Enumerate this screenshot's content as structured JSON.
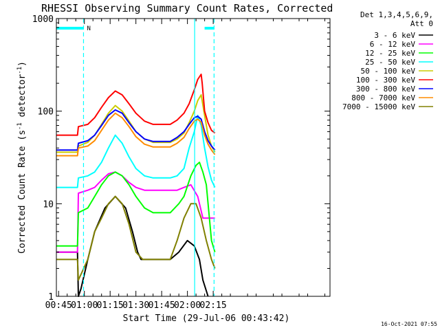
{
  "chart_data": {
    "type": "line",
    "title": "RHESSI Observing Summary Count Rates, Corrected",
    "xlabel": "Start Time (29-Jul-06 00:43:42)",
    "ylabel_main": "Corrected Count Rate (s",
    "ylabel_sup1": "-1",
    "ylabel_mid": " detector",
    "ylabel_sup2": "-1",
    "ylabel_end": ")",
    "x_unit": "minutes since 00:00 UT",
    "xlim": [
      43.7,
      203
    ],
    "ylim": [
      1,
      1000
    ],
    "y_scale": "log",
    "x_ticks": [
      {
        "v": 45,
        "label": "00:45"
      },
      {
        "v": 60,
        "label": "01:00"
      },
      {
        "v": 75,
        "label": "01:15"
      },
      {
        "v": 90,
        "label": "01:30"
      },
      {
        "v": 105,
        "label": "01:45"
      },
      {
        "v": 120,
        "label": "02:00"
      },
      {
        "v": 135,
        "label": "02:15"
      }
    ],
    "y_ticks": [
      {
        "v": 1,
        "label": "1"
      },
      {
        "v": 10,
        "label": "10"
      },
      {
        "v": 100,
        "label": "100"
      },
      {
        "v": 1000,
        "label": "1000"
      }
    ],
    "legend_header": [
      "Det 1,3,4,5,6,9,",
      "Att 0"
    ],
    "legend_position": "right",
    "series": [
      {
        "name": "3 - 6 keV",
        "color": "#000000",
        "x": [
          43.7,
          56,
          56.5,
          58,
          62,
          66,
          72,
          78,
          84,
          88,
          91,
          93,
          95,
          105,
          110,
          115,
          120,
          124,
          127,
          129,
          132
        ],
        "y": [
          3,
          3,
          1,
          1.2,
          2.5,
          5,
          9,
          12,
          9,
          5,
          3,
          2.5,
          2.5,
          2.5,
          2.5,
          3,
          4,
          3.5,
          2.5,
          1.5,
          1
        ]
      },
      {
        "name": "6 - 12 keV",
        "color": "#ff00ff",
        "x": [
          43.7,
          56,
          56.5,
          62,
          66,
          70,
          74,
          78,
          82,
          86,
          90,
          95,
          100,
          110,
          114,
          118,
          122,
          126,
          129,
          131,
          134,
          136
        ],
        "y": [
          3,
          3,
          13,
          14,
          15,
          18,
          21,
          22,
          20,
          17,
          15,
          14,
          14,
          14,
          14,
          15,
          16,
          12,
          7,
          7,
          7,
          7
        ]
      },
      {
        "name": "12 - 25 keV",
        "color": "#00ff00",
        "x": [
          43.7,
          56,
          56.5,
          62,
          66,
          70,
          74,
          78,
          82,
          86,
          90,
          95,
          100,
          110,
          115,
          118,
          122,
          125,
          127,
          129,
          131,
          134,
          136
        ],
        "y": [
          3.5,
          3.5,
          8,
          9,
          12,
          16,
          20,
          22,
          20,
          16,
          12,
          9,
          8,
          8,
          10,
          12,
          20,
          26,
          28,
          22,
          16,
          4,
          3
        ]
      },
      {
        "name": "25 - 50 keV",
        "color": "#00ffff",
        "x": [
          43.7,
          56,
          56.5,
          62,
          66,
          70,
          74,
          78,
          82,
          86,
          90,
          95,
          100,
          110,
          114,
          118,
          121,
          124,
          126,
          128,
          130,
          132,
          134,
          136
        ],
        "y": [
          15,
          15,
          19,
          20,
          22,
          28,
          40,
          55,
          45,
          32,
          24,
          20,
          19,
          19,
          20,
          24,
          40,
          60,
          90,
          70,
          40,
          25,
          18,
          15
        ]
      },
      {
        "name": "50 - 100 keV",
        "color": "#cccc00",
        "x": [
          43.7,
          56,
          56.5,
          62,
          66,
          70,
          74,
          78,
          82,
          86,
          90,
          95,
          100,
          110,
          114,
          118,
          121,
          124,
          126,
          128,
          130,
          132,
          134,
          136
        ],
        "y": [
          36,
          36,
          42,
          46,
          55,
          72,
          95,
          115,
          100,
          78,
          60,
          50,
          46,
          46,
          50,
          58,
          75,
          100,
          130,
          150,
          90,
          55,
          42,
          36
        ]
      },
      {
        "name": "100 - 300 keV",
        "color": "#ff0000",
        "x": [
          43.7,
          56,
          56.5,
          62,
          66,
          70,
          74,
          78,
          82,
          86,
          90,
          95,
          100,
          110,
          114,
          118,
          121,
          124,
          126,
          128,
          128.6,
          130,
          132,
          134,
          136
        ],
        "y": [
          55,
          55,
          68,
          72,
          85,
          110,
          140,
          165,
          150,
          120,
          95,
          78,
          72,
          72,
          80,
          95,
          120,
          170,
          220,
          250,
          200,
          100,
          75,
          62,
          58
        ]
      },
      {
        "name": "300 - 800 keV",
        "color": "#0000ff",
        "x": [
          43.7,
          56,
          56.5,
          62,
          66,
          70,
          74,
          78,
          82,
          86,
          90,
          95,
          100,
          110,
          114,
          118,
          121,
          124,
          126,
          128,
          130,
          132,
          134,
          136
        ],
        "y": [
          38,
          38,
          45,
          48,
          55,
          70,
          90,
          103,
          95,
          75,
          60,
          50,
          47,
          47,
          52,
          60,
          72,
          85,
          88,
          82,
          60,
          48,
          42,
          38
        ]
      },
      {
        "name": "800 - 7000 keV",
        "color": "#ff8c00",
        "x": [
          43.7,
          56,
          56.5,
          62,
          66,
          70,
          74,
          78,
          82,
          86,
          90,
          95,
          100,
          110,
          114,
          118,
          121,
          124,
          126,
          128,
          130,
          132,
          134,
          136
        ],
        "y": [
          33,
          33,
          40,
          42,
          48,
          62,
          80,
          95,
          85,
          68,
          53,
          44,
          41,
          41,
          45,
          52,
          65,
          78,
          82,
          76,
          55,
          44,
          38,
          34
        ]
      },
      {
        "name": "7000 - 15000 keV",
        "color": "#808000",
        "x": [
          43.7,
          56,
          56.5,
          62,
          66,
          70,
          74,
          78,
          82,
          86,
          90,
          94,
          96,
          110,
          114,
          118,
          122,
          125,
          128,
          131,
          134,
          136
        ],
        "y": [
          2.5,
          2.5,
          1.5,
          2.5,
          5,
          7,
          10,
          12,
          10,
          6,
          3,
          2.5,
          2.5,
          2.5,
          4,
          7,
          10,
          10,
          7,
          4,
          2.5,
          2
        ]
      }
    ],
    "annotations": {
      "saa_bar_color": "#00ffff",
      "saa_segments": [
        [
          43.7,
          59.5
        ],
        [
          130,
          135.5
        ]
      ],
      "saa_label": "N",
      "vlines_dashed": [
        59.5,
        135.5
      ],
      "vlines_solid": [
        124.2
      ]
    },
    "footer_timestamp": "16-Oct-2021 07:55"
  }
}
